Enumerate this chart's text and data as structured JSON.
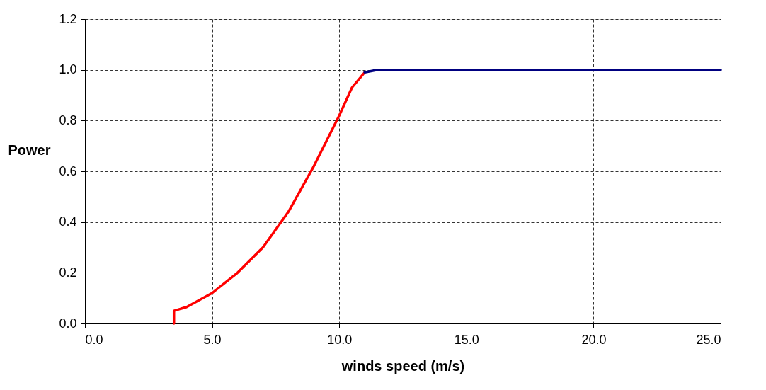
{
  "chart_data": {
    "type": "line",
    "xlabel": "winds speed (m/s)",
    "ylabel": "Power",
    "series": [
      {
        "color": "#ff0000",
        "x": [
          3.5,
          3.5,
          4,
          5,
          6,
          7,
          8,
          9,
          10,
          10.5,
          11
        ],
        "values": [
          0,
          0.05,
          0.065,
          0.12,
          0.2,
          0.3,
          0.44,
          0.62,
          0.82,
          0.93,
          0.99
        ]
      },
      {
        "color": "#000080",
        "x": [
          11,
          11.5,
          15,
          20,
          25
        ],
        "values": [
          0.99,
          1.0,
          1.0,
          1.0,
          1.0
        ]
      }
    ],
    "xlim": [
      0,
      25
    ],
    "ylim": [
      0,
      1.2
    ],
    "xticks": [
      {
        "value": 0,
        "label": "0.0"
      },
      {
        "value": 5,
        "label": "5.0"
      },
      {
        "value": 10,
        "label": "10.0"
      },
      {
        "value": 15,
        "label": "15.0"
      },
      {
        "value": 20,
        "label": "20.0"
      },
      {
        "value": 25,
        "label": "25.0"
      }
    ],
    "yticks": [
      {
        "value": 0,
        "label": "0.0"
      },
      {
        "value": 0.2,
        "label": "0.2"
      },
      {
        "value": 0.4,
        "label": "0.4"
      },
      {
        "value": 0.6,
        "label": "0.6"
      },
      {
        "value": 0.8,
        "label": "0.8"
      },
      {
        "value": 1.0,
        "label": "1.0"
      },
      {
        "value": 1.2,
        "label": "1.2"
      }
    ],
    "grid": true,
    "line_style": "solid",
    "marker": "none"
  }
}
